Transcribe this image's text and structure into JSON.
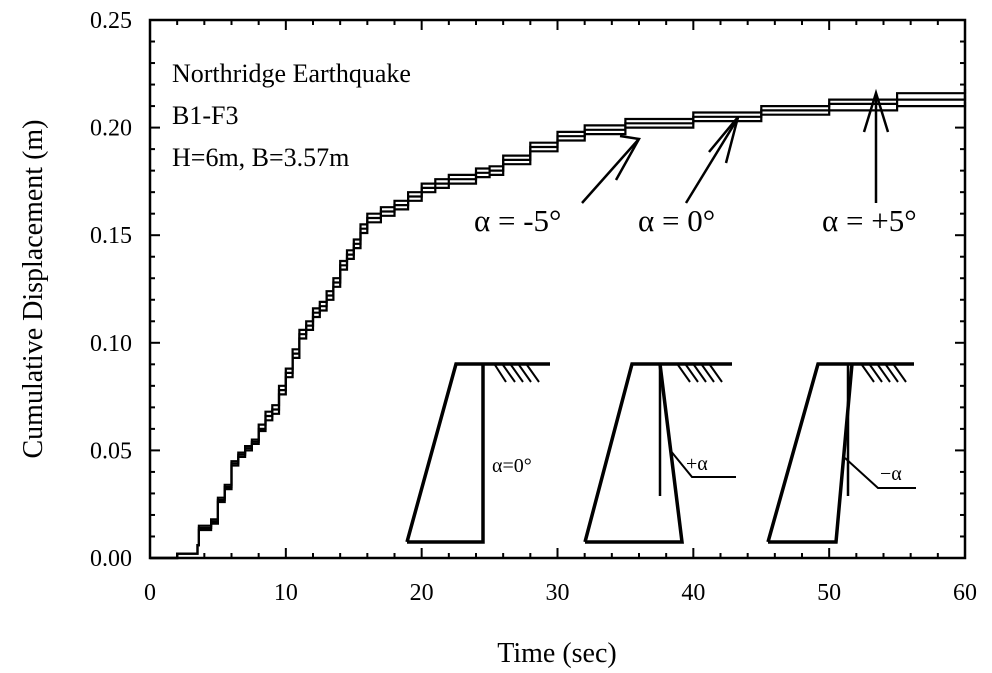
{
  "chart_data": {
    "type": "line",
    "xlabel": "Time (sec)",
    "ylabel": "Cumulative Displacement (m)",
    "xlim": [
      0,
      60
    ],
    "ylim": [
      0,
      0.25
    ],
    "x_ticks": [
      "0",
      "10",
      "20",
      "30",
      "40",
      "50",
      "60"
    ],
    "y_ticks": [
      "0.00",
      "0.05",
      "0.10",
      "0.15",
      "0.20",
      "0.25"
    ],
    "grid": false,
    "annotation_lines": [
      "Northridge Earthquake",
      "B1-F3",
      "H=6m, B=3.57m"
    ],
    "callouts": [
      "α = -5°",
      "α = 0°",
      "α = +5°"
    ],
    "inset_labels": [
      "α=0°",
      "+α",
      "−α"
    ],
    "series": [
      {
        "points": [
          [
            0,
            0
          ],
          [
            2,
            0.002
          ],
          [
            3.5,
            0.006
          ],
          [
            3.6,
            0.015
          ],
          [
            4.5,
            0.018
          ],
          [
            5,
            0.028
          ],
          [
            5.5,
            0.034
          ],
          [
            6,
            0.045
          ],
          [
            6.5,
            0.049
          ],
          [
            7,
            0.052
          ],
          [
            7.5,
            0.055
          ],
          [
            8,
            0.062
          ],
          [
            8.5,
            0.068
          ],
          [
            9,
            0.071
          ],
          [
            9.5,
            0.08
          ],
          [
            10,
            0.088
          ],
          [
            10.5,
            0.097
          ],
          [
            11,
            0.106
          ],
          [
            11.5,
            0.11
          ],
          [
            12,
            0.116
          ],
          [
            12.5,
            0.119
          ],
          [
            13,
            0.124
          ],
          [
            13.5,
            0.13
          ],
          [
            14,
            0.138
          ],
          [
            14.5,
            0.143
          ],
          [
            15,
            0.148
          ],
          [
            15.5,
            0.155
          ],
          [
            16,
            0.16
          ],
          [
            17,
            0.163
          ],
          [
            18,
            0.166
          ],
          [
            19,
            0.17
          ],
          [
            20,
            0.174
          ],
          [
            21,
            0.176
          ],
          [
            22,
            0.178
          ],
          [
            24,
            0.181
          ],
          [
            25,
            0.182
          ],
          [
            26,
            0.187
          ],
          [
            28,
            0.193
          ],
          [
            30,
            0.198
          ],
          [
            32,
            0.201
          ],
          [
            35,
            0.204
          ],
          [
            40,
            0.207
          ],
          [
            45,
            0.21
          ],
          [
            50,
            0.213
          ],
          [
            55,
            0.216
          ],
          [
            60,
            0.218
          ]
        ]
      },
      {
        "points": [
          [
            0,
            0
          ],
          [
            2,
            0.002
          ],
          [
            3.5,
            0.006
          ],
          [
            3.6,
            0.014
          ],
          [
            4.5,
            0.017
          ],
          [
            5,
            0.027
          ],
          [
            5.5,
            0.033
          ],
          [
            6,
            0.044
          ],
          [
            6.5,
            0.048
          ],
          [
            7,
            0.051
          ],
          [
            7.5,
            0.054
          ],
          [
            8,
            0.06
          ],
          [
            8.5,
            0.066
          ],
          [
            9,
            0.069
          ],
          [
            9.5,
            0.078
          ],
          [
            10,
            0.086
          ],
          [
            10.5,
            0.095
          ],
          [
            11,
            0.104
          ],
          [
            11.5,
            0.108
          ],
          [
            12,
            0.114
          ],
          [
            12.5,
            0.117
          ],
          [
            13,
            0.122
          ],
          [
            13.5,
            0.128
          ],
          [
            14,
            0.136
          ],
          [
            14.5,
            0.141
          ],
          [
            15,
            0.146
          ],
          [
            15.5,
            0.153
          ],
          [
            16,
            0.158
          ],
          [
            17,
            0.161
          ],
          [
            18,
            0.164
          ],
          [
            19,
            0.168
          ],
          [
            20,
            0.172
          ],
          [
            21,
            0.174
          ],
          [
            22,
            0.176
          ],
          [
            24,
            0.179
          ],
          [
            25,
            0.18
          ],
          [
            26,
            0.185
          ],
          [
            28,
            0.191
          ],
          [
            30,
            0.196
          ],
          [
            32,
            0.199
          ],
          [
            35,
            0.202
          ],
          [
            40,
            0.205
          ],
          [
            45,
            0.208
          ],
          [
            50,
            0.211
          ],
          [
            55,
            0.213
          ],
          [
            60,
            0.215
          ]
        ]
      },
      {
        "points": [
          [
            0,
            0
          ],
          [
            2,
            0.002
          ],
          [
            3.5,
            0.006
          ],
          [
            3.6,
            0.013
          ],
          [
            4.5,
            0.016
          ],
          [
            5,
            0.026
          ],
          [
            5.5,
            0.032
          ],
          [
            6,
            0.043
          ],
          [
            6.5,
            0.047
          ],
          [
            7,
            0.05
          ],
          [
            7.5,
            0.053
          ],
          [
            8,
            0.059
          ],
          [
            8.5,
            0.064
          ],
          [
            9,
            0.067
          ],
          [
            9.5,
            0.076
          ],
          [
            10,
            0.084
          ],
          [
            10.5,
            0.093
          ],
          [
            11,
            0.102
          ],
          [
            11.5,
            0.106
          ],
          [
            12,
            0.112
          ],
          [
            12.5,
            0.115
          ],
          [
            13,
            0.12
          ],
          [
            13.5,
            0.126
          ],
          [
            14,
            0.134
          ],
          [
            14.5,
            0.139
          ],
          [
            15,
            0.144
          ],
          [
            15.5,
            0.151
          ],
          [
            16,
            0.156
          ],
          [
            17,
            0.159
          ],
          [
            18,
            0.162
          ],
          [
            19,
            0.166
          ],
          [
            20,
            0.17
          ],
          [
            21,
            0.172
          ],
          [
            22,
            0.174
          ],
          [
            24,
            0.177
          ],
          [
            25,
            0.178
          ],
          [
            26,
            0.183
          ],
          [
            28,
            0.189
          ],
          [
            30,
            0.194
          ],
          [
            32,
            0.197
          ],
          [
            35,
            0.2
          ],
          [
            40,
            0.203
          ],
          [
            45,
            0.206
          ],
          [
            50,
            0.208
          ],
          [
            55,
            0.21
          ],
          [
            60,
            0.212
          ]
        ]
      }
    ]
  }
}
